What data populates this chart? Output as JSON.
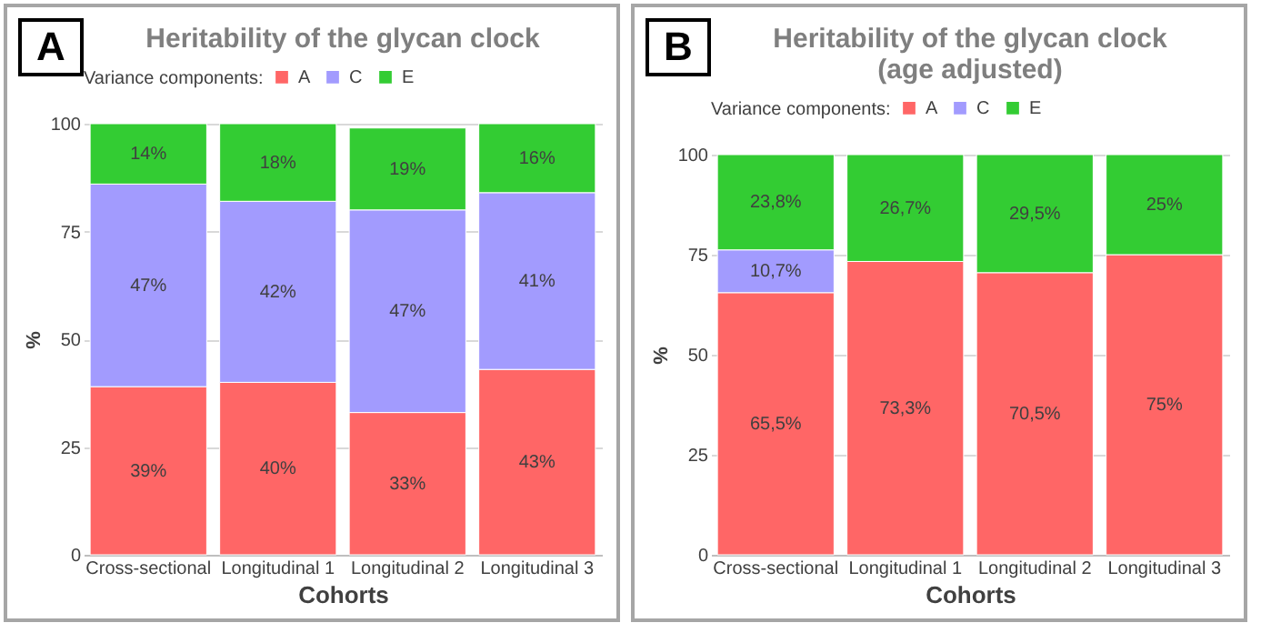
{
  "chart_data": [
    {
      "type": "bar",
      "title": "Heritability of the glycan clock",
      "annotations": [
        "A"
      ],
      "xlabel": "Cohorts",
      "ylabel": "%",
      "legend_title": "Variance components:",
      "legend": "top",
      "grid": "y",
      "stacked": true,
      "categories": [
        "Cross-sectional",
        "Longitudinal 1",
        "Longitudinal 2",
        "Longitudinal 3"
      ],
      "ylim": [
        0,
        100
      ],
      "yticks": [
        0,
        25,
        50,
        75,
        100
      ],
      "series": [
        {
          "name": "A",
          "color": "#ff6666",
          "values": [
            39,
            40,
            33,
            43
          ],
          "value_labels": [
            "39%",
            "40%",
            "33%",
            "43%"
          ]
        },
        {
          "name": "C",
          "color": "#a29bfe",
          "values": [
            47,
            42,
            47,
            41
          ],
          "value_labels": [
            "47%",
            "42%",
            "47%",
            "41%"
          ]
        },
        {
          "name": "E",
          "color": "#33cc33",
          "values": [
            14,
            18,
            19,
            16
          ],
          "value_labels": [
            "14%",
            "18%",
            "19%",
            "16%"
          ]
        }
      ]
    },
    {
      "type": "bar",
      "title": "Heritability of the glycan clock\n(age adjusted)",
      "annotations": [
        "B"
      ],
      "xlabel": "Cohorts",
      "ylabel": "%",
      "legend_title": "Variance components:",
      "legend": "top",
      "grid": "y",
      "stacked": true,
      "categories": [
        "Cross-sectional",
        "Longitudinal 1",
        "Longitudinal 2",
        "Longitudinal 3"
      ],
      "ylim": [
        0,
        100
      ],
      "yticks": [
        0,
        25,
        50,
        75,
        100
      ],
      "series": [
        {
          "name": "A",
          "color": "#ff6666",
          "values": [
            65.5,
            73.3,
            70.5,
            75
          ],
          "value_labels": [
            "65,5%",
            "73,3%",
            "70,5%",
            "75%"
          ]
        },
        {
          "name": "C",
          "color": "#a29bfe",
          "values": [
            10.7,
            null,
            null,
            null
          ],
          "value_labels": [
            "10,7%",
            null,
            null,
            null
          ]
        },
        {
          "name": "E",
          "color": "#33cc33",
          "values": [
            23.8,
            26.7,
            29.5,
            25
          ],
          "value_labels": [
            "23,8%",
            "26,7%",
            "29,5%",
            "25%"
          ]
        }
      ]
    }
  ]
}
